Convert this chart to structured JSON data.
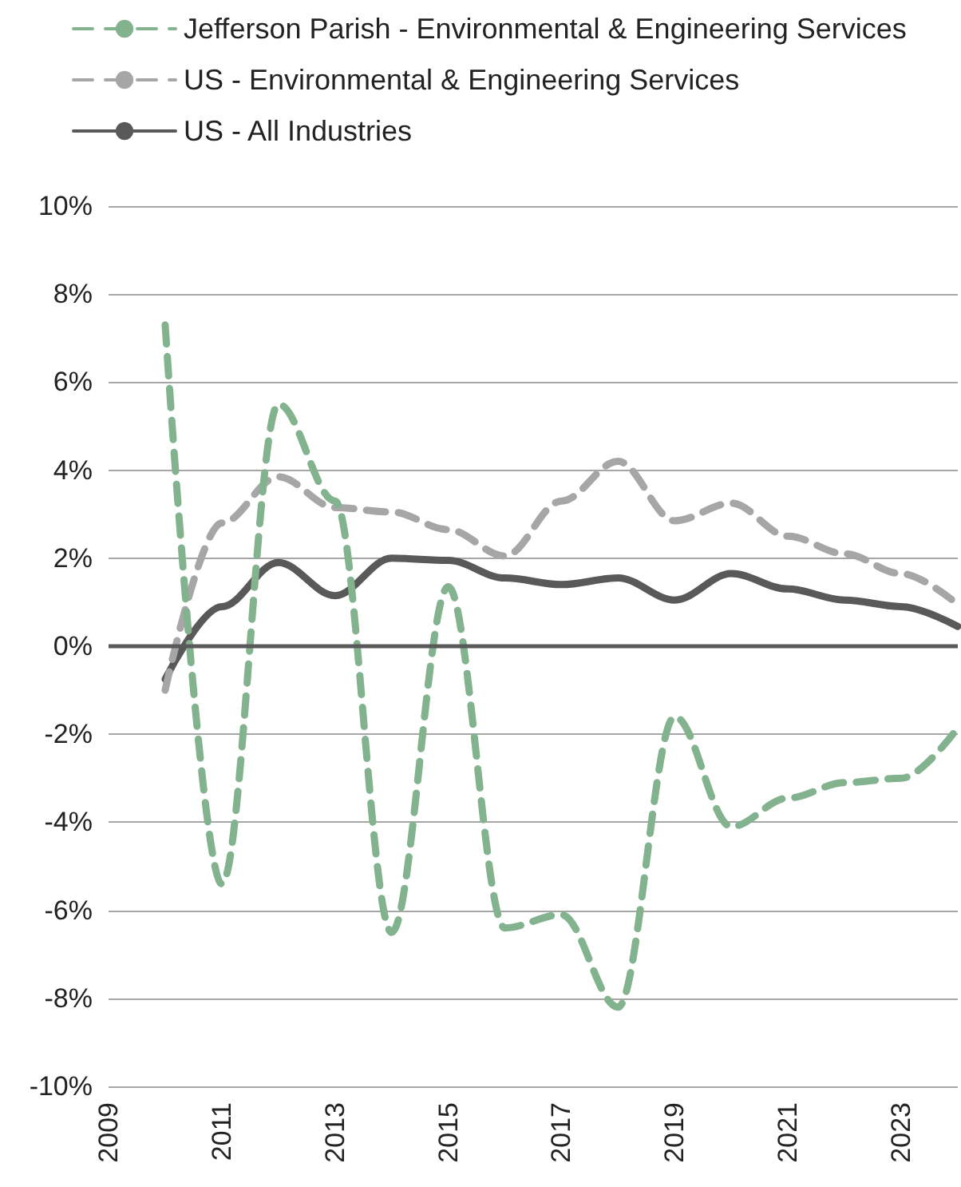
{
  "chart_data": {
    "type": "line",
    "x": [
      2010,
      2011,
      2012,
      2013,
      2014,
      2015,
      2016,
      2017,
      2018,
      2019,
      2020,
      2021,
      2022,
      2023,
      2024
    ],
    "series": [
      {
        "name": "Jefferson Parish - Environmental & Engineering Services",
        "color": "#82b38e",
        "line_style": "dashed",
        "values": [
          7.3,
          -5.4,
          5.5,
          3.3,
          -6.5,
          1.35,
          -6.4,
          -6.1,
          -8.2,
          -1.6,
          -4.1,
          -3.45,
          -3.1,
          -3.0,
          -1.85
        ]
      },
      {
        "name": "US - Environmental & Engineering Services",
        "color": "#a6a6a6",
        "line_style": "dashed",
        "values": [
          -1.0,
          2.8,
          3.85,
          3.15,
          3.05,
          2.65,
          2.05,
          3.3,
          4.2,
          2.85,
          3.25,
          2.5,
          2.1,
          1.65,
          0.95
        ]
      },
      {
        "name": "US - All Industries",
        "color": "#595959",
        "line_style": "solid",
        "values": [
          -0.75,
          0.9,
          1.9,
          1.15,
          2.0,
          1.95,
          1.55,
          1.4,
          1.55,
          1.05,
          1.65,
          1.3,
          1.05,
          0.9,
          0.45
        ]
      }
    ],
    "xlim": [
      2009,
      2024
    ],
    "xticks": [
      2009,
      2011,
      2013,
      2015,
      2017,
      2019,
      2021,
      2023
    ],
    "ylim": [
      -10,
      10
    ],
    "yticks": [
      {
        "value": -10,
        "label": "-10%"
      },
      {
        "value": -8,
        "label": "-8%"
      },
      {
        "value": -6,
        "label": "-6%"
      },
      {
        "value": -4,
        "label": "-4%"
      },
      {
        "value": -2,
        "label": "-2%"
      },
      {
        "value": 0,
        "label": "0%"
      },
      {
        "value": 2,
        "label": "2%"
      },
      {
        "value": 4,
        "label": "4%"
      },
      {
        "value": 6,
        "label": "6%"
      },
      {
        "value": 8,
        "label": "8%"
      },
      {
        "value": 10,
        "label": "10%"
      }
    ],
    "ref_lines": [
      {
        "axis": "y",
        "value": 0,
        "color": "#595959"
      }
    ],
    "grid": "y",
    "legend": "top left",
    "marker": "none"
  }
}
